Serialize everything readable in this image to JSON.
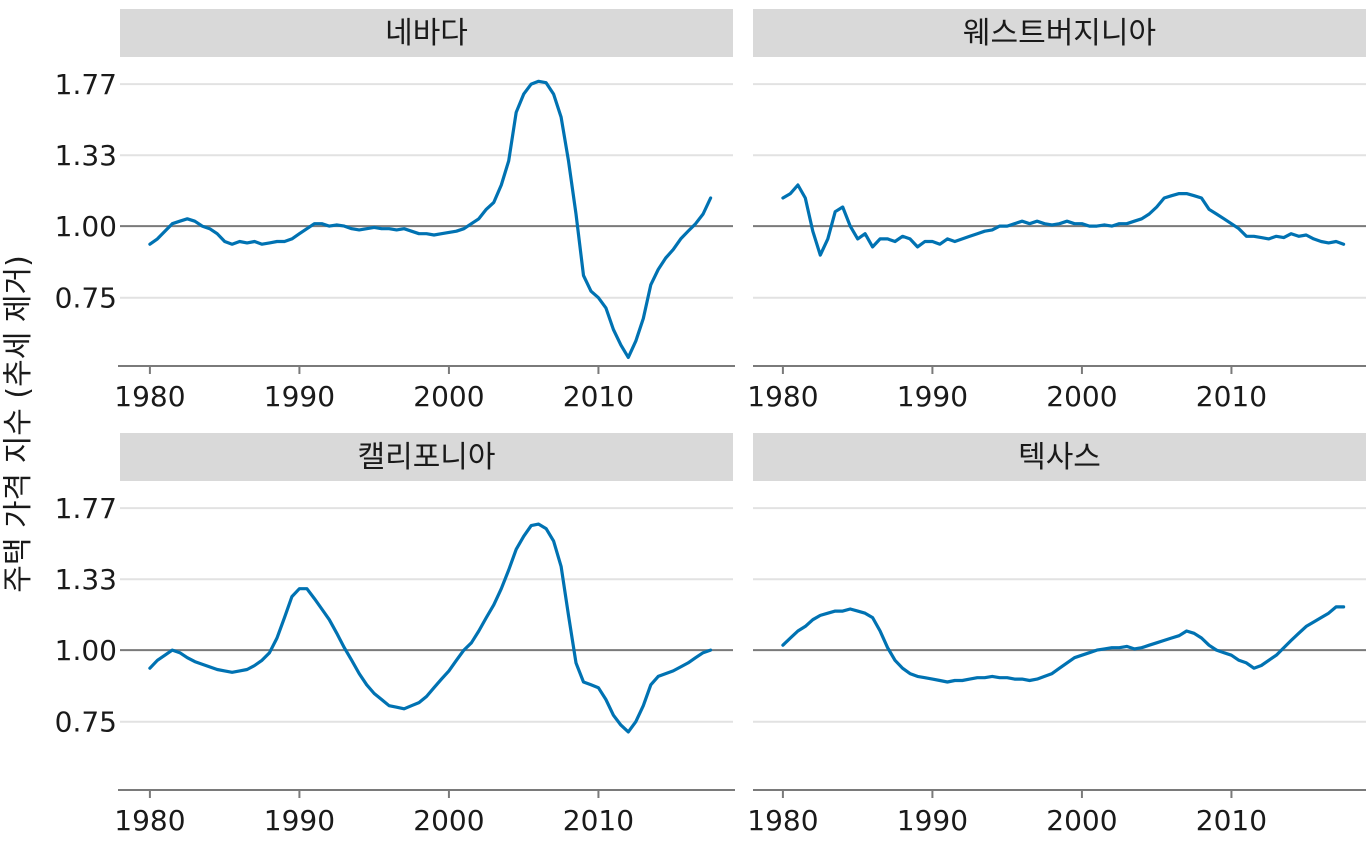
{
  "chart_data": {
    "type": "line",
    "ylabel": "주택 가격 지수 (추세 제거)",
    "xlabel": "",
    "x_ticks": [
      1980,
      1990,
      2000,
      2010
    ],
    "y_ticks": [
      0.75,
      1.0,
      1.33,
      1.77
    ],
    "y_tick_labels": [
      "0.75",
      "1.00",
      "1.33",
      "1.77"
    ],
    "reference_line": 1.0,
    "xlim": [
      1978,
      2019
    ],
    "ylim": [
      0.57,
      1.95
    ],
    "y_scale": "log",
    "grid": "horizontal",
    "line_color": "#0072b2",
    "facets": [
      {
        "label": "네바다",
        "points": [
          [
            1980,
            0.93
          ],
          [
            1980.5,
            0.95
          ],
          [
            1981,
            0.98
          ],
          [
            1981.5,
            1.01
          ],
          [
            1982,
            1.02
          ],
          [
            1982.5,
            1.03
          ],
          [
            1983,
            1.02
          ],
          [
            1983.5,
            1.0
          ],
          [
            1984,
            0.99
          ],
          [
            1984.5,
            0.97
          ],
          [
            1985,
            0.94
          ],
          [
            1985.5,
            0.93
          ],
          [
            1986,
            0.94
          ],
          [
            1986.5,
            0.935
          ],
          [
            1987,
            0.94
          ],
          [
            1987.5,
            0.93
          ],
          [
            1988,
            0.935
          ],
          [
            1988.5,
            0.94
          ],
          [
            1989,
            0.94
          ],
          [
            1989.5,
            0.95
          ],
          [
            1990,
            0.97
          ],
          [
            1990.5,
            0.99
          ],
          [
            1991,
            1.01
          ],
          [
            1991.5,
            1.01
          ],
          [
            1992,
            1.0
          ],
          [
            1992.5,
            1.005
          ],
          [
            1993,
            1.0
          ],
          [
            1993.5,
            0.99
          ],
          [
            1994,
            0.985
          ],
          [
            1994.5,
            0.99
          ],
          [
            1995,
            0.995
          ],
          [
            1995.5,
            0.99
          ],
          [
            1996,
            0.99
          ],
          [
            1996.5,
            0.985
          ],
          [
            1997,
            0.99
          ],
          [
            1997.5,
            0.98
          ],
          [
            1998,
            0.97
          ],
          [
            1998.5,
            0.97
          ],
          [
            1999,
            0.965
          ],
          [
            1999.5,
            0.97
          ],
          [
            2000,
            0.975
          ],
          [
            2000.5,
            0.98
          ],
          [
            2001,
            0.99
          ],
          [
            2001.5,
            1.01
          ],
          [
            2002,
            1.03
          ],
          [
            2002.5,
            1.07
          ],
          [
            2003,
            1.1
          ],
          [
            2003.5,
            1.18
          ],
          [
            2004,
            1.3
          ],
          [
            2004.5,
            1.58
          ],
          [
            2005,
            1.7
          ],
          [
            2005.5,
            1.77
          ],
          [
            2006,
            1.79
          ],
          [
            2006.5,
            1.78
          ],
          [
            2007,
            1.7
          ],
          [
            2007.5,
            1.55
          ],
          [
            2008,
            1.3
          ],
          [
            2008.5,
            1.05
          ],
          [
            2009,
            0.82
          ],
          [
            2009.5,
            0.77
          ],
          [
            2010,
            0.75
          ],
          [
            2010.5,
            0.72
          ],
          [
            2011,
            0.66
          ],
          [
            2011.5,
            0.62
          ],
          [
            2012,
            0.59
          ],
          [
            2012.5,
            0.63
          ],
          [
            2013,
            0.69
          ],
          [
            2013.5,
            0.79
          ],
          [
            2014,
            0.84
          ],
          [
            2014.5,
            0.88
          ],
          [
            2015,
            0.91
          ],
          [
            2015.5,
            0.95
          ],
          [
            2016,
            0.98
          ],
          [
            2016.5,
            1.01
          ],
          [
            2017,
            1.05
          ],
          [
            2017.5,
            1.12
          ]
        ]
      },
      {
        "label": "웨스트버지니아",
        "points": [
          [
            1980,
            1.12
          ],
          [
            1980.5,
            1.14
          ],
          [
            1981,
            1.18
          ],
          [
            1981.5,
            1.12
          ],
          [
            1982,
            0.98
          ],
          [
            1982.5,
            0.89
          ],
          [
            1983,
            0.95
          ],
          [
            1983.5,
            1.06
          ],
          [
            1984,
            1.08
          ],
          [
            1984.5,
            1.0
          ],
          [
            1985,
            0.95
          ],
          [
            1985.5,
            0.97
          ],
          [
            1986,
            0.92
          ],
          [
            1986.5,
            0.95
          ],
          [
            1987,
            0.95
          ],
          [
            1987.5,
            0.94
          ],
          [
            1988,
            0.96
          ],
          [
            1988.5,
            0.95
          ],
          [
            1989,
            0.92
          ],
          [
            1989.5,
            0.94
          ],
          [
            1990,
            0.94
          ],
          [
            1990.5,
            0.93
          ],
          [
            1991,
            0.95
          ],
          [
            1991.5,
            0.94
          ],
          [
            1992,
            0.95
          ],
          [
            1992.5,
            0.96
          ],
          [
            1993,
            0.97
          ],
          [
            1993.5,
            0.98
          ],
          [
            1994,
            0.985
          ],
          [
            1994.5,
            1.0
          ],
          [
            1995,
            1.0
          ],
          [
            1995.5,
            1.01
          ],
          [
            1996,
            1.02
          ],
          [
            1996.5,
            1.01
          ],
          [
            1997,
            1.02
          ],
          [
            1997.5,
            1.01
          ],
          [
            1998,
            1.005
          ],
          [
            1998.5,
            1.01
          ],
          [
            1999,
            1.02
          ],
          [
            1999.5,
            1.01
          ],
          [
            2000,
            1.01
          ],
          [
            2000.5,
            1.0
          ],
          [
            2001,
            1.0
          ],
          [
            2001.5,
            1.005
          ],
          [
            2002,
            1.0
          ],
          [
            2002.5,
            1.01
          ],
          [
            2003,
            1.01
          ],
          [
            2003.5,
            1.02
          ],
          [
            2004,
            1.03
          ],
          [
            2004.5,
            1.05
          ],
          [
            2005,
            1.08
          ],
          [
            2005.5,
            1.12
          ],
          [
            2006,
            1.13
          ],
          [
            2006.5,
            1.14
          ],
          [
            2007,
            1.14
          ],
          [
            2007.5,
            1.13
          ],
          [
            2008,
            1.12
          ],
          [
            2008.5,
            1.07
          ],
          [
            2009,
            1.05
          ],
          [
            2009.5,
            1.03
          ],
          [
            2010,
            1.01
          ],
          [
            2010.5,
            0.99
          ],
          [
            2011,
            0.96
          ],
          [
            2011.5,
            0.96
          ],
          [
            2012,
            0.955
          ],
          [
            2012.5,
            0.95
          ],
          [
            2013,
            0.96
          ],
          [
            2013.5,
            0.955
          ],
          [
            2014,
            0.97
          ],
          [
            2014.5,
            0.96
          ],
          [
            2015,
            0.965
          ],
          [
            2015.5,
            0.95
          ],
          [
            2016,
            0.94
          ],
          [
            2016.5,
            0.935
          ],
          [
            2017,
            0.94
          ],
          [
            2017.5,
            0.93
          ]
        ]
      },
      {
        "label": "캘리포니아",
        "points": [
          [
            1980,
            0.93
          ],
          [
            1980.5,
            0.96
          ],
          [
            1981,
            0.98
          ],
          [
            1981.5,
            1.0
          ],
          [
            1982,
            0.99
          ],
          [
            1982.5,
            0.97
          ],
          [
            1983,
            0.955
          ],
          [
            1983.5,
            0.945
          ],
          [
            1984,
            0.935
          ],
          [
            1984.5,
            0.925
          ],
          [
            1985,
            0.92
          ],
          [
            1985.5,
            0.915
          ],
          [
            1986,
            0.92
          ],
          [
            1986.5,
            0.925
          ],
          [
            1987,
            0.94
          ],
          [
            1987.5,
            0.96
          ],
          [
            1988,
            0.99
          ],
          [
            1988.5,
            1.05
          ],
          [
            1989,
            1.14
          ],
          [
            1989.5,
            1.24
          ],
          [
            1990,
            1.28
          ],
          [
            1990.5,
            1.28
          ],
          [
            1991,
            1.23
          ],
          [
            1991.5,
            1.18
          ],
          [
            1992,
            1.13
          ],
          [
            1992.5,
            1.07
          ],
          [
            1993,
            1.01
          ],
          [
            1993.5,
            0.96
          ],
          [
            1994,
            0.91
          ],
          [
            1994.5,
            0.87
          ],
          [
            1995,
            0.84
          ],
          [
            1995.5,
            0.82
          ],
          [
            1996,
            0.8
          ],
          [
            1996.5,
            0.795
          ],
          [
            1997,
            0.79
          ],
          [
            1997.5,
            0.8
          ],
          [
            1998,
            0.81
          ],
          [
            1998.5,
            0.83
          ],
          [
            1999,
            0.86
          ],
          [
            1999.5,
            0.89
          ],
          [
            2000,
            0.92
          ],
          [
            2000.5,
            0.96
          ],
          [
            2001,
            1.0
          ],
          [
            2001.5,
            1.03
          ],
          [
            2002,
            1.08
          ],
          [
            2002.5,
            1.14
          ],
          [
            2003,
            1.2
          ],
          [
            2003.5,
            1.28
          ],
          [
            2004,
            1.38
          ],
          [
            2004.5,
            1.5
          ],
          [
            2005,
            1.58
          ],
          [
            2005.5,
            1.65
          ],
          [
            2006,
            1.66
          ],
          [
            2006.5,
            1.63
          ],
          [
            2007,
            1.55
          ],
          [
            2007.5,
            1.4
          ],
          [
            2008,
            1.15
          ],
          [
            2008.5,
            0.95
          ],
          [
            2009,
            0.88
          ],
          [
            2009.5,
            0.87
          ],
          [
            2010,
            0.86
          ],
          [
            2010.5,
            0.82
          ],
          [
            2011,
            0.77
          ],
          [
            2011.5,
            0.74
          ],
          [
            2012,
            0.72
          ],
          [
            2012.5,
            0.75
          ],
          [
            2013,
            0.8
          ],
          [
            2013.5,
            0.87
          ],
          [
            2014,
            0.9
          ],
          [
            2014.5,
            0.91
          ],
          [
            2015,
            0.92
          ],
          [
            2015.5,
            0.935
          ],
          [
            2016,
            0.95
          ],
          [
            2016.5,
            0.97
          ],
          [
            2017,
            0.99
          ],
          [
            2017.5,
            1.0
          ]
        ]
      },
      {
        "label": "텍사스",
        "points": [
          [
            1980,
            1.02
          ],
          [
            1980.5,
            1.05
          ],
          [
            1981,
            1.08
          ],
          [
            1981.5,
            1.1
          ],
          [
            1982,
            1.13
          ],
          [
            1982.5,
            1.15
          ],
          [
            1983,
            1.16
          ],
          [
            1983.5,
            1.17
          ],
          [
            1984,
            1.17
          ],
          [
            1984.5,
            1.18
          ],
          [
            1985,
            1.17
          ],
          [
            1985.5,
            1.16
          ],
          [
            1986,
            1.14
          ],
          [
            1986.5,
            1.08
          ],
          [
            1987,
            1.01
          ],
          [
            1987.5,
            0.96
          ],
          [
            1988,
            0.93
          ],
          [
            1988.5,
            0.91
          ],
          [
            1989,
            0.9
          ],
          [
            1989.5,
            0.895
          ],
          [
            1990,
            0.89
          ],
          [
            1990.5,
            0.885
          ],
          [
            1991,
            0.88
          ],
          [
            1991.5,
            0.885
          ],
          [
            1992,
            0.885
          ],
          [
            1992.5,
            0.89
          ],
          [
            1993,
            0.895
          ],
          [
            1993.5,
            0.895
          ],
          [
            1994,
            0.9
          ],
          [
            1994.5,
            0.895
          ],
          [
            1995,
            0.895
          ],
          [
            1995.5,
            0.89
          ],
          [
            1996,
            0.89
          ],
          [
            1996.5,
            0.885
          ],
          [
            1997,
            0.89
          ],
          [
            1997.5,
            0.9
          ],
          [
            1998,
            0.91
          ],
          [
            1998.5,
            0.93
          ],
          [
            1999,
            0.95
          ],
          [
            1999.5,
            0.97
          ],
          [
            2000,
            0.98
          ],
          [
            2000.5,
            0.99
          ],
          [
            2001,
            1.0
          ],
          [
            2001.5,
            1.005
          ],
          [
            2002,
            1.01
          ],
          [
            2002.5,
            1.01
          ],
          [
            2003,
            1.015
          ],
          [
            2003.5,
            1.005
          ],
          [
            2004,
            1.01
          ],
          [
            2004.5,
            1.02
          ],
          [
            2005,
            1.03
          ],
          [
            2005.5,
            1.04
          ],
          [
            2006,
            1.05
          ],
          [
            2006.5,
            1.06
          ],
          [
            2007,
            1.08
          ],
          [
            2007.5,
            1.07
          ],
          [
            2008,
            1.05
          ],
          [
            2008.5,
            1.02
          ],
          [
            2009,
            1.0
          ],
          [
            2009.5,
            0.99
          ],
          [
            2010,
            0.98
          ],
          [
            2010.5,
            0.96
          ],
          [
            2011,
            0.95
          ],
          [
            2011.5,
            0.93
          ],
          [
            2012,
            0.94
          ],
          [
            2012.5,
            0.96
          ],
          [
            2013,
            0.98
          ],
          [
            2013.5,
            1.01
          ],
          [
            2014,
            1.04
          ],
          [
            2014.5,
            1.07
          ],
          [
            2015,
            1.1
          ],
          [
            2015.5,
            1.12
          ],
          [
            2016,
            1.14
          ],
          [
            2016.5,
            1.16
          ],
          [
            2017,
            1.19
          ],
          [
            2017.5,
            1.19
          ]
        ]
      }
    ]
  }
}
